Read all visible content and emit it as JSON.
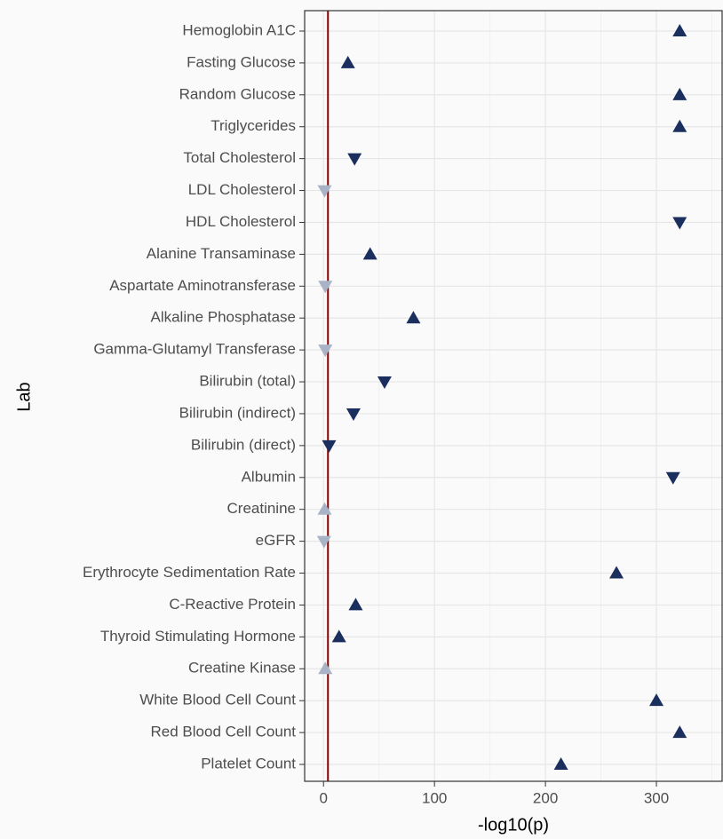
{
  "chart_data": {
    "type": "dot",
    "xlabel": "-log10(p)",
    "ylabel": "Lab",
    "categories": [
      "Hemoglobin A1C",
      "Fasting Glucose",
      "Random Glucose",
      "Triglycerides",
      "Total Cholesterol",
      "LDL Cholesterol",
      "HDL Cholesterol",
      "Alanine Transaminase",
      "Aspartate Aminotransferase",
      "Alkaline Phosphatase",
      "Gamma-Glutamyl Transferase",
      "Bilirubin (total)",
      "Bilirubin (indirect)",
      "Bilirubin (direct)",
      "Albumin",
      "Creatinine",
      "eGFR",
      "Erythrocyte Sedimentation Rate",
      "C-Reactive Protein",
      "Thyroid Stimulating Hormone",
      "Creatine Kinase",
      "White Blood Cell Count",
      "Red Blood Cell Count",
      "Platelet Count"
    ],
    "values": [
      321,
      22,
      321,
      321,
      28,
      1,
      321,
      42,
      1.6,
      81,
      1.6,
      55,
      27,
      5,
      315,
      1,
      0.5,
      264,
      29,
      14,
      1.6,
      300,
      321,
      214
    ],
    "markers": [
      "up",
      "up",
      "up",
      "up",
      "down",
      "down",
      "down",
      "up",
      "down",
      "up",
      "down",
      "down",
      "down",
      "down",
      "down",
      "up",
      "down",
      "up",
      "up",
      "up",
      "up",
      "up",
      "up",
      "up"
    ],
    "colors": [
      "#1b2f5e",
      "#1b2f5e",
      "#1b2f5e",
      "#1b2f5e",
      "#1b2f5e",
      "#a9b3c7",
      "#1b2f5e",
      "#1b2f5e",
      "#a9b3c7",
      "#1b2f5e",
      "#a9b3c7",
      "#1b2f5e",
      "#1b2f5e",
      "#1b2f5e",
      "#1b2f5e",
      "#a9b3c7",
      "#a9b3c7",
      "#1b2f5e",
      "#1b2f5e",
      "#1b2f5e",
      "#a9b3c7",
      "#1b2f5e",
      "#1b2f5e",
      "#1b2f5e"
    ],
    "xlim": [
      -17,
      360
    ],
    "xticks": [
      0,
      100,
      200,
      300
    ],
    "minor_xgrid": [
      50,
      150,
      250,
      350
    ],
    "vline": 4,
    "vline_color": "#8b0000",
    "grid": true
  }
}
